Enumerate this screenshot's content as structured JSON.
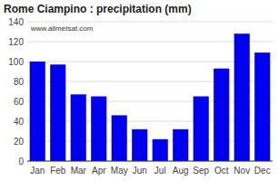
{
  "chart_data": {
    "type": "bar",
    "title": "Rome Ciampino : precipitation (mm)",
    "categories": [
      "Jan",
      "Feb",
      "Mar",
      "Apr",
      "May",
      "Jun",
      "Jul",
      "Aug",
      "Sep",
      "Oct",
      "Nov",
      "Dec"
    ],
    "values": [
      100,
      97,
      67,
      65,
      46,
      32,
      22,
      32,
      65,
      93,
      128,
      109
    ],
    "color": "#0000ee",
    "ylim": [
      0,
      140
    ],
    "yticks": [
      0,
      20,
      40,
      60,
      80,
      100,
      120,
      140
    ],
    "grid": true,
    "annotation": "www.allmetsat.com"
  }
}
